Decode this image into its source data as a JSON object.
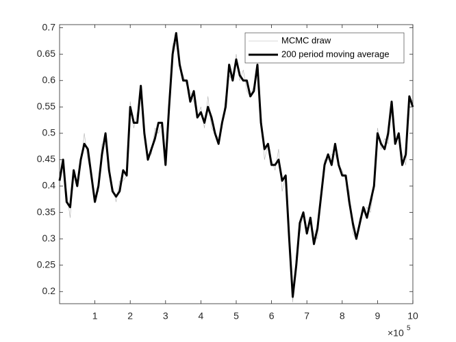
{
  "chart_data": {
    "type": "line",
    "x": [
      0,
      10000,
      20000,
      30000,
      40000,
      50000,
      60000,
      70000,
      80000,
      90000,
      100000,
      110000,
      120000,
      130000,
      140000,
      150000,
      160000,
      170000,
      180000,
      190000,
      200000,
      210000,
      220000,
      230000,
      240000,
      250000,
      260000,
      270000,
      280000,
      290000,
      300000,
      310000,
      320000,
      330000,
      340000,
      350000,
      360000,
      370000,
      380000,
      390000,
      400000,
      410000,
      420000,
      430000,
      440000,
      450000,
      460000,
      470000,
      480000,
      490000,
      500000,
      510000,
      520000,
      530000,
      540000,
      550000,
      560000,
      570000,
      580000,
      590000,
      600000,
      610000,
      620000,
      630000,
      640000,
      650000,
      660000,
      670000,
      680000,
      690000,
      700000,
      710000,
      720000,
      730000,
      740000,
      750000,
      760000,
      770000,
      780000,
      790000,
      800000,
      810000,
      820000,
      830000,
      840000,
      850000,
      860000,
      870000,
      880000,
      890000,
      900000,
      910000,
      920000,
      930000,
      940000,
      950000,
      960000,
      970000,
      980000,
      990000,
      1000000
    ],
    "series": [
      {
        "name": "MCMC draw",
        "color": "#b0b0b0",
        "width": 0.6,
        "values": [
          0.42,
          0.44,
          0.39,
          0.34,
          0.43,
          0.41,
          0.44,
          0.5,
          0.45,
          0.42,
          0.38,
          0.39,
          0.48,
          0.48,
          0.43,
          0.4,
          0.37,
          0.41,
          0.41,
          0.42,
          0.56,
          0.51,
          0.54,
          0.57,
          0.5,
          0.46,
          0.46,
          0.51,
          0.5,
          0.52,
          0.45,
          0.54,
          0.67,
          0.67,
          0.63,
          0.61,
          0.59,
          0.58,
          0.56,
          0.53,
          0.55,
          0.51,
          0.57,
          0.51,
          0.5,
          0.49,
          0.51,
          0.57,
          0.61,
          0.6,
          0.65,
          0.6,
          0.62,
          0.58,
          0.57,
          0.59,
          0.62,
          0.54,
          0.45,
          0.48,
          0.45,
          0.43,
          0.47,
          0.39,
          0.42,
          0.31,
          0.18,
          0.27,
          0.31,
          0.35,
          0.32,
          0.33,
          0.31,
          0.3,
          0.38,
          0.45,
          0.45,
          0.46,
          0.46,
          0.44,
          0.43,
          0.41,
          0.39,
          0.31,
          0.3,
          0.34,
          0.35,
          0.36,
          0.35,
          0.4,
          0.51,
          0.47,
          0.49,
          0.48,
          0.56,
          0.49,
          0.49,
          0.46,
          0.44,
          0.57,
          0.56
        ]
      },
      {
        "name": "200 period moving average",
        "color": "#000000",
        "width": 3,
        "values": [
          0.41,
          0.45,
          0.37,
          0.36,
          0.43,
          0.4,
          0.45,
          0.48,
          0.47,
          0.42,
          0.37,
          0.4,
          0.46,
          0.5,
          0.43,
          0.39,
          0.38,
          0.39,
          0.43,
          0.42,
          0.55,
          0.52,
          0.52,
          0.59,
          0.5,
          0.45,
          0.47,
          0.49,
          0.52,
          0.52,
          0.44,
          0.55,
          0.65,
          0.69,
          0.63,
          0.6,
          0.6,
          0.56,
          0.58,
          0.53,
          0.54,
          0.52,
          0.55,
          0.53,
          0.5,
          0.48,
          0.52,
          0.55,
          0.63,
          0.6,
          0.64,
          0.61,
          0.6,
          0.6,
          0.57,
          0.58,
          0.63,
          0.52,
          0.47,
          0.48,
          0.44,
          0.44,
          0.45,
          0.41,
          0.42,
          0.3,
          0.19,
          0.25,
          0.33,
          0.35,
          0.31,
          0.34,
          0.29,
          0.32,
          0.38,
          0.44,
          0.46,
          0.44,
          0.48,
          0.44,
          0.42,
          0.42,
          0.37,
          0.33,
          0.3,
          0.33,
          0.36,
          0.34,
          0.37,
          0.4,
          0.5,
          0.48,
          0.47,
          0.5,
          0.56,
          0.48,
          0.5,
          0.44,
          0.46,
          0.57,
          0.55
        ]
      }
    ],
    "xlim": [
      0,
      1000000
    ],
    "ylim": [
      0.177,
      0.706
    ],
    "xticks": [
      {
        "value": 100000,
        "label": "1"
      },
      {
        "value": 200000,
        "label": "2"
      },
      {
        "value": 300000,
        "label": "3"
      },
      {
        "value": 400000,
        "label": "4"
      },
      {
        "value": 500000,
        "label": "5"
      },
      {
        "value": 600000,
        "label": "6"
      },
      {
        "value": 700000,
        "label": "7"
      },
      {
        "value": 800000,
        "label": "8"
      },
      {
        "value": 900000,
        "label": "9"
      },
      {
        "value": 1000000,
        "label": "10"
      }
    ],
    "yticks": [
      0.2,
      0.25,
      0.3,
      0.35,
      0.4,
      0.45,
      0.5,
      0.55,
      0.6,
      0.65,
      0.7
    ],
    "x_multiplier": {
      "base": "×10",
      "power": "5"
    },
    "legend": "northeast",
    "grid": false
  }
}
